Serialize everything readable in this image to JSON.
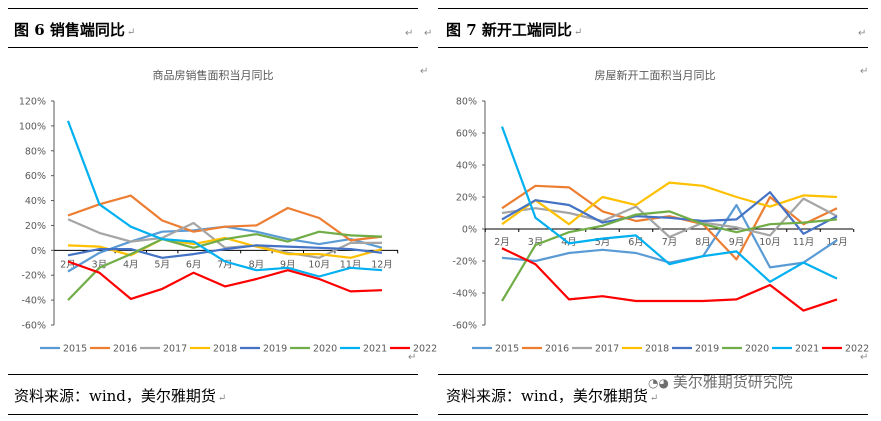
{
  "para_mark": "↵",
  "left": {
    "figure_title": "图 6  销售端同比",
    "source": "资料来源：wind，美尔雅期货"
  },
  "right": {
    "figure_title": "图 7    新开工端同比",
    "source": "资料来源：wind，美尔雅期货"
  },
  "watermark": "美尔雅期货研究院",
  "chart_data": [
    {
      "type": "line",
      "title": "商品房销售面积当月同比",
      "categories": [
        "2月",
        "3月",
        "4月",
        "5月",
        "6月",
        "7月",
        "8月",
        "9月",
        "10月",
        "11月",
        "12月"
      ],
      "ylim": [
        -60,
        120
      ],
      "yticks": [
        "120%",
        "100%",
        "80%",
        "60%",
        "40%",
        "20%",
        "0%",
        "-20%",
        "-40%",
        "-60%"
      ],
      "ytick_values": [
        120,
        100,
        80,
        60,
        40,
        20,
        0,
        -20,
        -40,
        -60
      ],
      "grid": false,
      "legend": "bottom",
      "series": [
        {
          "name": "2015",
          "color": "#5b9bd5",
          "values": [
            -17,
            -2,
            7,
            15,
            16,
            19,
            15,
            9,
            5,
            9,
            2
          ]
        },
        {
          "name": "2016",
          "color": "#ed7d31",
          "values": [
            28,
            37,
            44,
            24,
            15,
            19,
            20,
            34,
            26,
            8,
            11
          ]
        },
        {
          "name": "2017",
          "color": "#a5a5a5",
          "values": [
            25,
            14,
            7,
            10,
            22,
            2,
            4,
            -2,
            -6,
            6,
            6
          ]
        },
        {
          "name": "2018",
          "color": "#ffc000",
          "values": [
            4,
            3,
            -4,
            9,
            5,
            10,
            3,
            -3,
            -3,
            -6,
            1
          ]
        },
        {
          "name": "2019",
          "color": "#4472c4",
          "values": [
            -4,
            1,
            1,
            -6,
            -3,
            1,
            4,
            3,
            2,
            1,
            -2
          ]
        },
        {
          "name": "2020",
          "color": "#70ad47",
          "values": [
            -40,
            -14,
            -3,
            9,
            2,
            9,
            13,
            7,
            15,
            12,
            11
          ]
        },
        {
          "name": "2021",
          "color": "#00b0f0",
          "values": [
            104,
            37,
            19,
            9,
            7,
            -9,
            -16,
            -14,
            -21,
            -14,
            -16
          ]
        },
        {
          "name": "2022",
          "color": "#ff0000",
          "values": [
            -9,
            -18,
            -39,
            -31,
            -18,
            -29,
            -23,
            -16,
            -23,
            -33,
            -32
          ]
        }
      ]
    },
    {
      "type": "line",
      "title": "房屋新开工面积当月同比",
      "categories": [
        "2月",
        "3月",
        "4月",
        "5月",
        "6月",
        "7月",
        "8月",
        "9月",
        "10月",
        "11月",
        "12月"
      ],
      "ylim": [
        -60,
        80
      ],
      "yticks": [
        "80%",
        "60%",
        "40%",
        "20%",
        "0%",
        "-20%",
        "-40%",
        "-60%"
      ],
      "ytick_values": [
        80,
        60,
        40,
        20,
        0,
        -20,
        -40,
        -60
      ],
      "grid": false,
      "legend": "bottom",
      "series": [
        {
          "name": "2015",
          "color": "#5b9bd5",
          "values": [
            -18,
            -20,
            -15,
            -13,
            -15,
            -21,
            -17,
            15,
            -24,
            -21,
            -7
          ]
        },
        {
          "name": "2016",
          "color": "#ed7d31",
          "values": [
            13,
            27,
            26,
            11,
            5,
            8,
            3,
            -19,
            20,
            3,
            13
          ]
        },
        {
          "name": "2017",
          "color": "#a5a5a5",
          "values": [
            10,
            13,
            10,
            5,
            14,
            -5,
            4,
            1,
            -4,
            19,
            8
          ]
        },
        {
          "name": "2018",
          "color": "#ffc000",
          "values": [
            3,
            18,
            3,
            20,
            15,
            29,
            27,
            20,
            14,
            21,
            20
          ]
        },
        {
          "name": "2019",
          "color": "#4472c4",
          "values": [
            6,
            18,
            15,
            4,
            8,
            7,
            5,
            6,
            23,
            -3,
            8
          ]
        },
        {
          "name": "2020",
          "color": "#70ad47",
          "values": [
            -45,
            -10,
            -2,
            2,
            9,
            11,
            3,
            -2,
            3,
            4,
            6
          ]
        },
        {
          "name": "2021",
          "color": "#00b0f0",
          "values": [
            64,
            7,
            -9,
            -6,
            -4,
            -22,
            -17,
            -14,
            -33,
            -21,
            -31
          ]
        },
        {
          "name": "2022",
          "color": "#ff0000",
          "values": [
            -12,
            -22,
            -44,
            -42,
            -45,
            -45,
            -45,
            -44,
            -35,
            -51,
            -44
          ]
        }
      ]
    }
  ]
}
